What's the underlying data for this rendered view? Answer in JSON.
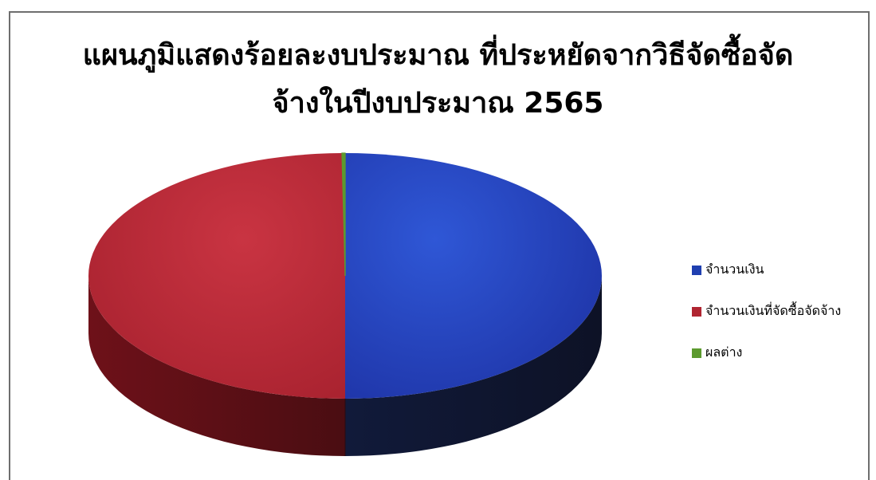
{
  "chart_data": {
    "type": "pie",
    "title_line1": "แผนภูมิแสดงร้อยละงบประมาณ ที่ประหยัดจากวิธีจัดซื้อจัด",
    "title_line2": "จ้างในปีงบประมาณ 2565",
    "three_d": true,
    "legend_position": "right",
    "series": [
      {
        "name": "จำนวนเงิน",
        "value": 50.0,
        "color": "#1f3fb0"
      },
      {
        "name": "จำนวนเงินที่จัดซื้อจัดจ้าง",
        "value": 49.8,
        "color": "#b02531"
      },
      {
        "name": "ผลต่าง",
        "value": 0.2,
        "color": "#5c9a2e"
      }
    ]
  }
}
